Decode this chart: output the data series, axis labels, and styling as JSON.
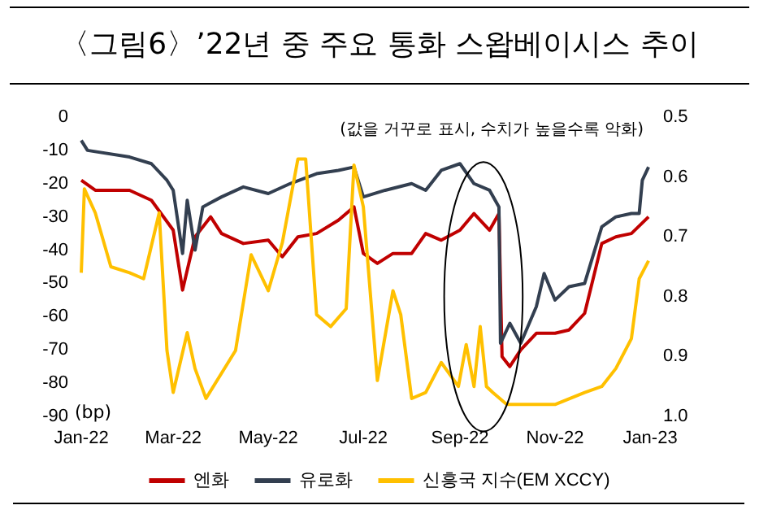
{
  "chart_data": {
    "type": "line",
    "title": "〈그림6〉’22년 중 주요 통화 스왑베이시스 추이",
    "ylabel": "(bp)",
    "annotations": [
      "(값을 거꾸로 표시, 수치가 높을수록 악화)"
    ],
    "xlim": [
      "2022-01-01",
      "2023-01-01"
    ],
    "xticks": [
      {
        "value": "2022-01-01",
        "label": "Jan-22"
      },
      {
        "value": "2022-03-01",
        "label": "Mar-22"
      },
      {
        "value": "2022-05-01",
        "label": "May-22"
      },
      {
        "value": "2022-07-01",
        "label": "Jul-22"
      },
      {
        "value": "2022-09-01",
        "label": "Sep-22"
      },
      {
        "value": "2022-11-01",
        "label": "Nov-22"
      },
      {
        "value": "2023-01-01",
        "label": "Jan-23"
      }
    ],
    "ylim": [
      -90,
      0
    ],
    "yticks": [
      -90,
      -80,
      -70,
      -60,
      -50,
      -40,
      -30,
      -20,
      -10,
      0
    ],
    "y2lim": [
      1.0,
      0.5
    ],
    "y2ticks": [
      0.5,
      0.6,
      0.7,
      0.8,
      0.9,
      {
        "value": 1.0,
        "label": "1.0"
      }
    ],
    "grid": false,
    "legend": "bottom",
    "marker": "none",
    "line_style": "solid",
    "series": [
      {
        "name": "엔화",
        "color": "#c00000",
        "x": [
          "2022-01-01",
          "2022-01-10",
          "2022-02-01",
          "2022-02-15",
          "2022-03-01",
          "2022-03-07",
          "2022-03-15",
          "2022-03-25",
          "2022-04-01",
          "2022-04-15",
          "2022-05-01",
          "2022-05-10",
          "2022-05-20",
          "2022-06-01",
          "2022-06-15",
          "2022-06-25",
          "2022-07-01",
          "2022-07-10",
          "2022-07-20",
          "2022-08-01",
          "2022-08-10",
          "2022-08-20",
          "2022-09-01",
          "2022-09-10",
          "2022-09-20",
          "2022-09-26",
          "2022-09-28",
          "2022-10-03",
          "2022-10-10",
          "2022-10-20",
          "2022-11-01",
          "2022-11-10",
          "2022-11-20",
          "2022-12-01",
          "2022-12-10",
          "2022-12-20",
          "2022-12-31"
        ],
        "values": [
          -19,
          -22,
          -22,
          -25,
          -34,
          -52,
          -36,
          -30,
          -35,
          -38,
          -37,
          -42,
          -36,
          -35,
          -31,
          -27,
          -41,
          -44,
          -41,
          -41,
          -35,
          -37,
          -34,
          -29,
          -34,
          -29,
          -72,
          -75,
          -70,
          -65,
          -65,
          -64,
          -59,
          -38,
          -36,
          -35,
          -30
        ]
      },
      {
        "name": "유로화",
        "color": "#333f50",
        "x": [
          "2022-01-01",
          "2022-01-05",
          "2022-02-01",
          "2022-02-15",
          "2022-02-25",
          "2022-03-01",
          "2022-03-07",
          "2022-03-10",
          "2022-03-15",
          "2022-03-20",
          "2022-04-01",
          "2022-04-15",
          "2022-05-01",
          "2022-05-15",
          "2022-06-01",
          "2022-06-15",
          "2022-06-25",
          "2022-07-01",
          "2022-07-15",
          "2022-08-01",
          "2022-08-10",
          "2022-08-20",
          "2022-09-01",
          "2022-09-10",
          "2022-09-20",
          "2022-09-26",
          "2022-09-27",
          "2022-10-03",
          "2022-10-10",
          "2022-10-20",
          "2022-10-25",
          "2022-11-01",
          "2022-11-10",
          "2022-11-20",
          "2022-12-01",
          "2022-12-10",
          "2022-12-20",
          "2022-12-25",
          "2022-12-27",
          "2022-12-31"
        ],
        "values": [
          -7,
          -10,
          -12,
          -14,
          -19,
          -22,
          -41,
          -25,
          -40,
          -27,
          -24,
          -21,
          -23,
          -20,
          -17,
          -16,
          -15,
          -24,
          -22,
          -20,
          -22,
          -16,
          -14,
          -20,
          -22,
          -27,
          -68,
          -62,
          -68,
          -57,
          -47,
          -55,
          -51,
          -50,
          -33,
          -30,
          -29,
          -29,
          -19,
          -15
        ]
      },
      {
        "name": "신흥국 지수(EM XCCY)",
        "color": "#ffc000",
        "axis": "y2",
        "x": [
          "2022-01-01",
          "2022-01-03",
          "2022-01-10",
          "2022-01-20",
          "2022-02-01",
          "2022-02-10",
          "2022-02-20",
          "2022-02-25",
          "2022-03-01",
          "2022-03-10",
          "2022-03-15",
          "2022-03-22",
          "2022-04-10",
          "2022-04-20",
          "2022-05-01",
          "2022-05-10",
          "2022-05-20",
          "2022-05-25",
          "2022-06-01",
          "2022-06-10",
          "2022-06-20",
          "2022-06-25",
          "2022-07-01",
          "2022-07-10",
          "2022-07-20",
          "2022-07-25",
          "2022-08-01",
          "2022-08-10",
          "2022-08-20",
          "2022-08-31",
          "2022-09-05",
          "2022-09-10",
          "2022-09-14",
          "2022-09-18",
          "2022-09-22",
          "2022-10-01",
          "2022-11-01",
          "2022-11-20",
          "2022-12-01",
          "2022-12-10",
          "2022-12-20",
          "2022-12-25",
          "2022-12-31"
        ],
        "values": [
          0.76,
          0.62,
          0.66,
          0.75,
          0.76,
          0.77,
          0.66,
          0.89,
          0.96,
          0.86,
          0.92,
          0.97,
          0.89,
          0.73,
          0.79,
          0.71,
          0.57,
          0.57,
          0.83,
          0.85,
          0.82,
          0.58,
          0.65,
          0.94,
          0.79,
          0.83,
          0.97,
          0.96,
          0.91,
          0.95,
          0.88,
          0.95,
          0.85,
          0.95,
          0.96,
          0.98,
          0.98,
          0.96,
          0.95,
          0.92,
          0.87,
          0.77,
          0.74
        ]
      }
    ]
  }
}
